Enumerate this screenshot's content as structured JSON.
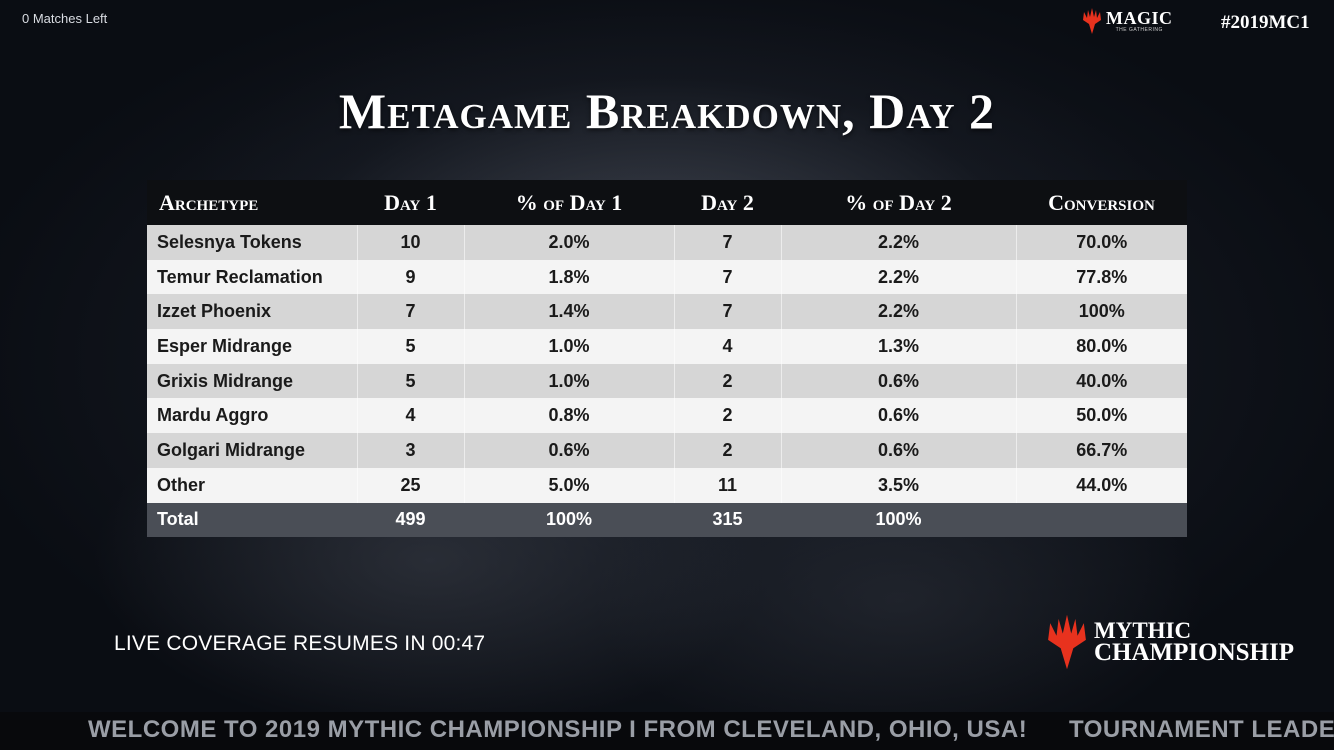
{
  "header": {
    "matches_left": "0 Matches Left",
    "brand_word": "MAGIC",
    "brand_sub": "THE GATHERING",
    "hashtag": "#2019MC1"
  },
  "title": "Metagame Breakdown, Day 2",
  "table": {
    "columns": [
      "Archetype",
      "Day 1",
      "% of Day 1",
      "Day 2",
      "% of Day 2",
      "Conversion"
    ],
    "rows": [
      [
        "Selesnya Tokens",
        "10",
        "2.0%",
        "7",
        "2.2%",
        "70.0%"
      ],
      [
        "Temur Reclamation",
        "9",
        "1.8%",
        "7",
        "2.2%",
        "77.8%"
      ],
      [
        "Izzet Phoenix",
        "7",
        "1.4%",
        "7",
        "2.2%",
        "100%"
      ],
      [
        "Esper Midrange",
        "5",
        "1.0%",
        "4",
        "1.3%",
        "80.0%"
      ],
      [
        "Grixis Midrange",
        "5",
        "1.0%",
        "2",
        "0.6%",
        "40.0%"
      ],
      [
        "Mardu Aggro",
        "4",
        "0.8%",
        "2",
        "0.6%",
        "50.0%"
      ],
      [
        "Golgari Midrange",
        "3",
        "0.6%",
        "2",
        "0.6%",
        "66.7%"
      ],
      [
        "Other",
        "25",
        "5.0%",
        "11",
        "3.5%",
        "44.0%"
      ]
    ],
    "total": [
      "Total",
      "499",
      "100%",
      "315",
      "100%",
      ""
    ]
  },
  "countdown": "LIVE COVERAGE RESUMES IN 00:47",
  "mc_logo": {
    "line1": "MYTHIC",
    "line2": "CHAMPIONSHIP"
  },
  "ticker": {
    "item1": "WELCOME TO 2019 MYTHIC CHAMPIONSHIP I FROM CLEVELAND, OHIO, USA!",
    "item2": "TOURNAMENT LEADE"
  },
  "colors": {
    "flame": "#e8321e",
    "header_bg": "#0d0f12",
    "row_odd": "#d6d6d6",
    "row_even": "#f4f4f4",
    "total_bg": "#4a4e56"
  }
}
